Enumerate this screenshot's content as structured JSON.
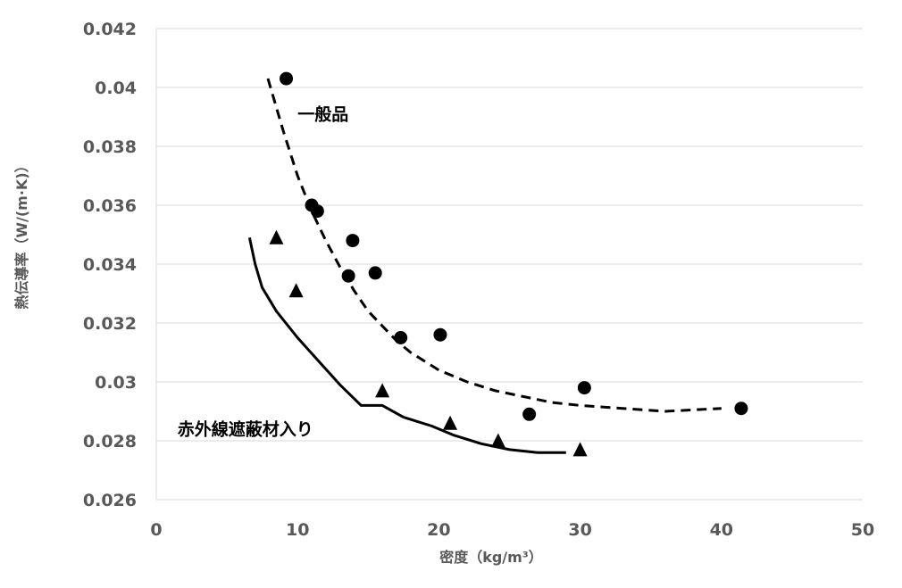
{
  "chart_data": {
    "type": "scatter",
    "title": "",
    "xlabel": "密度（kg/m³）",
    "ylabel": "熱伝導率（W/(m·K)）",
    "xlim": [
      0,
      50
    ],
    "ylim": [
      0.026,
      0.042
    ],
    "xticks": [
      0,
      10,
      20,
      30,
      40,
      50
    ],
    "yticks": [
      0.026,
      0.028,
      0.03,
      0.032,
      0.034,
      0.036,
      0.038,
      0.04,
      0.042
    ],
    "xtick_labels": [
      "0",
      "10",
      "20",
      "30",
      "40",
      "50"
    ],
    "ytick_labels": [
      "0.026",
      "0.028",
      "0.03",
      "0.032",
      "0.034",
      "0.036",
      "0.038",
      "0.04",
      "0.042"
    ],
    "grid": true,
    "legend": "none",
    "series": [
      {
        "name": "一般品",
        "marker": "circle",
        "color": "#000000",
        "points": [
          {
            "x": 9.2,
            "y": 0.0403
          },
          {
            "x": 11.0,
            "y": 0.036
          },
          {
            "x": 11.4,
            "y": 0.0358
          },
          {
            "x": 13.9,
            "y": 0.0348
          },
          {
            "x": 13.6,
            "y": 0.0336
          },
          {
            "x": 15.5,
            "y": 0.0337
          },
          {
            "x": 17.3,
            "y": 0.0315
          },
          {
            "x": 20.1,
            "y": 0.0316
          },
          {
            "x": 26.4,
            "y": 0.0289
          },
          {
            "x": 30.3,
            "y": 0.0298
          },
          {
            "x": 41.4,
            "y": 0.0291
          }
        ],
        "trend": {
          "style": "dashed",
          "points": [
            {
              "x": 7.9,
              "y": 0.0403
            },
            {
              "x": 9.0,
              "y": 0.0385
            },
            {
              "x": 10.0,
              "y": 0.037
            },
            {
              "x": 11.0,
              "y": 0.0358
            },
            {
              "x": 12.0,
              "y": 0.0348
            },
            {
              "x": 13.0,
              "y": 0.0339
            },
            {
              "x": 14.0,
              "y": 0.0331
            },
            {
              "x": 15.0,
              "y": 0.0324
            },
            {
              "x": 16.0,
              "y": 0.0319
            },
            {
              "x": 17.0,
              "y": 0.0314
            },
            {
              "x": 18.0,
              "y": 0.031
            },
            {
              "x": 20.0,
              "y": 0.0304
            },
            {
              "x": 22.0,
              "y": 0.03
            },
            {
              "x": 24.0,
              "y": 0.0297
            },
            {
              "x": 26.0,
              "y": 0.0295
            },
            {
              "x": 28.0,
              "y": 0.0293
            },
            {
              "x": 30.0,
              "y": 0.0292
            },
            {
              "x": 33.0,
              "y": 0.0291
            },
            {
              "x": 36.0,
              "y": 0.029
            },
            {
              "x": 40.0,
              "y": 0.0291
            }
          ]
        }
      },
      {
        "name": "赤外線遮蔽材入り",
        "marker": "triangle",
        "color": "#000000",
        "points": [
          {
            "x": 8.5,
            "y": 0.0349
          },
          {
            "x": 9.9,
            "y": 0.0331
          },
          {
            "x": 16.0,
            "y": 0.0297
          },
          {
            "x": 20.8,
            "y": 0.0286
          },
          {
            "x": 24.2,
            "y": 0.028
          },
          {
            "x": 30.0,
            "y": 0.0277
          }
        ],
        "trend": {
          "style": "solid",
          "points": [
            {
              "x": 6.6,
              "y": 0.0349
            },
            {
              "x": 7.0,
              "y": 0.034
            },
            {
              "x": 7.5,
              "y": 0.0332
            },
            {
              "x": 8.5,
              "y": 0.0324
            },
            {
              "x": 10.0,
              "y": 0.0315
            },
            {
              "x": 11.5,
              "y": 0.0307
            },
            {
              "x": 13.0,
              "y": 0.0299
            },
            {
              "x": 14.5,
              "y": 0.0292
            },
            {
              "x": 16.0,
              "y": 0.0292
            },
            {
              "x": 17.5,
              "y": 0.0288
            },
            {
              "x": 19.5,
              "y": 0.0285
            },
            {
              "x": 21.0,
              "y": 0.0282
            },
            {
              "x": 23.0,
              "y": 0.0279
            },
            {
              "x": 25.0,
              "y": 0.0277
            },
            {
              "x": 27.0,
              "y": 0.0276
            },
            {
              "x": 29.0,
              "y": 0.0276
            }
          ]
        }
      }
    ],
    "annotations": [
      {
        "text": "一般品",
        "x": 10.0,
        "y": 0.0389,
        "series": 0
      },
      {
        "text": "赤外線遮蔽材入り",
        "x": 1.5,
        "y": 0.0282,
        "series": 1
      }
    ]
  }
}
